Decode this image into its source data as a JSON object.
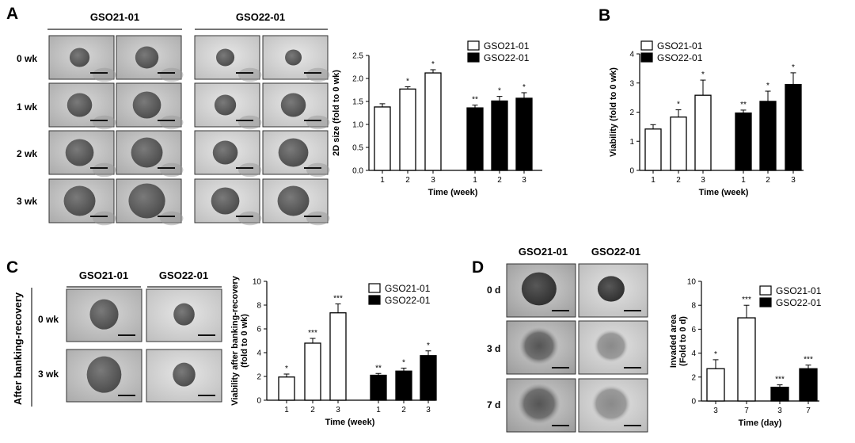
{
  "panels": {
    "A": {
      "label": "A",
      "columns": [
        "GSO21-01",
        "GSO22-01"
      ],
      "rows": [
        "0 wk",
        "1 wk",
        "2 wk",
        "3 wk"
      ]
    },
    "C": {
      "label": "C",
      "columns": [
        "GSO21-01",
        "GSO22-01"
      ],
      "rows": [
        "0 wk",
        "3 wk"
      ],
      "side_label": "After banking-recovery"
    },
    "D": {
      "label": "D",
      "columns": [
        "GSO21-01",
        "GSO22-01"
      ],
      "rows": [
        "0 d",
        "3 d",
        "7 d"
      ]
    }
  },
  "chart_data": [
    {
      "id": "A",
      "type": "bar",
      "ylabel": "2D size (fold to 0 wk)",
      "xlabel": "Time (week)",
      "ylim": [
        0,
        2.5
      ],
      "yticks": [
        "0.0",
        "0.5",
        "1.0",
        "1.5",
        "2.0",
        "2.5"
      ],
      "categories": [
        "1",
        "2",
        "3"
      ],
      "series": [
        {
          "name": "GSO21-01",
          "values": [
            1.38,
            1.77,
            2.12
          ],
          "errors": [
            0.07,
            0.05,
            0.07
          ],
          "sig": [
            "",
            "*",
            "*"
          ]
        },
        {
          "name": "GSO22-01",
          "values": [
            1.36,
            1.51,
            1.57
          ],
          "errors": [
            0.06,
            0.1,
            0.12
          ],
          "sig": [
            "**",
            "*",
            "*"
          ]
        }
      ]
    },
    {
      "id": "B",
      "label": "B",
      "type": "bar",
      "ylabel": "Viability (fold to 0 wk)",
      "xlabel": "Time (week)",
      "ylim": [
        0,
        4
      ],
      "yticks": [
        "0",
        "1",
        "2",
        "3",
        "4"
      ],
      "categories": [
        "1",
        "2",
        "3"
      ],
      "series": [
        {
          "name": "GSO21-01",
          "values": [
            1.42,
            1.83,
            2.58
          ],
          "errors": [
            0.15,
            0.25,
            0.52
          ],
          "sig": [
            "",
            "*",
            "*"
          ]
        },
        {
          "name": "GSO22-01",
          "values": [
            1.97,
            2.37,
            2.95
          ],
          "errors": [
            0.1,
            0.35,
            0.4
          ],
          "sig": [
            "**",
            "*",
            "*"
          ]
        }
      ]
    },
    {
      "id": "C",
      "type": "bar",
      "ylabel": "Viability after banking-recovery (fold to 0 wk)",
      "ylabel_lines": [
        "Viability after banking-recovery",
        "(fold to 0 wk)"
      ],
      "xlabel": "Time (week)",
      "ylim": [
        0,
        10
      ],
      "yticks": [
        "0",
        "2",
        "4",
        "6",
        "8",
        "10"
      ],
      "categories": [
        "1",
        "2",
        "3"
      ],
      "series": [
        {
          "name": "GSO21-01",
          "values": [
            1.95,
            4.8,
            7.35
          ],
          "errors": [
            0.25,
            0.4,
            0.75
          ],
          "sig": [
            "*",
            "***",
            "***"
          ]
        },
        {
          "name": "GSO22-01",
          "values": [
            2.1,
            2.45,
            3.75
          ],
          "errors": [
            0.15,
            0.25,
            0.4
          ],
          "sig": [
            "**",
            "*",
            "*"
          ]
        }
      ]
    },
    {
      "id": "D",
      "type": "bar",
      "ylabel": "Invaded area (Fold to 0 d)",
      "ylabel_lines": [
        "Invaded area",
        "(Fold to 0 d)"
      ],
      "xlabel": "Time (day)",
      "ylim": [
        0,
        10
      ],
      "yticks": [
        "0",
        "2",
        "4",
        "6",
        "8",
        "10"
      ],
      "categories": [
        "3",
        "7"
      ],
      "series": [
        {
          "name": "GSO21-01",
          "values": [
            2.7,
            6.95
          ],
          "errors": [
            0.75,
            1.05
          ],
          "sig": [
            "*",
            "***"
          ]
        },
        {
          "name": "GSO22-01",
          "values": [
            1.15,
            2.7
          ],
          "errors": [
            0.2,
            0.3
          ],
          "sig": [
            "***",
            "***"
          ]
        }
      ]
    }
  ]
}
